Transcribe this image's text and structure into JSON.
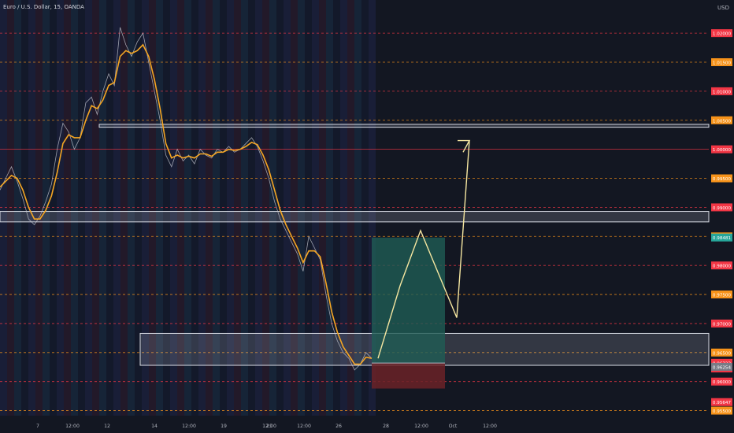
{
  "header": {
    "title": "Euro / U.S. Dollar, 15, OANDA",
    "currency": "USD"
  },
  "colors": {
    "background": "#131722",
    "grid_orange": "#f7931a",
    "grid_red": "#f23645",
    "price_line": "#c9ccd6",
    "ma_line": "#f5a623",
    "projection": "#f6e7a1",
    "target_zone": "#1f5c55",
    "stop_zone": "#6b2227",
    "zone_border": "#d7dae3"
  },
  "chart_data": {
    "type": "line",
    "symbol": "EURUSD",
    "interval": "15",
    "ylim": [
      0.9525,
      1.023
    ],
    "price_levels": [
      {
        "value": "1.02500",
        "style": "orange"
      },
      {
        "value": "1.02000",
        "style": "red"
      },
      {
        "value": "1.01500",
        "style": "orange"
      },
      {
        "value": "1.01000",
        "style": "red"
      },
      {
        "value": "1.00500",
        "style": "orange"
      },
      {
        "value": "1.00000",
        "style": "red"
      },
      {
        "value": "0.99500",
        "style": "orange"
      },
      {
        "value": "0.99000",
        "style": "red"
      },
      {
        "value": "0.98500",
        "style": "orange"
      },
      {
        "value": "0.98000",
        "style": "red"
      },
      {
        "value": "0.97500",
        "style": "orange"
      },
      {
        "value": "0.97000",
        "style": "red"
      },
      {
        "value": "0.96500",
        "style": "orange"
      },
      {
        "value": "0.96000",
        "style": "red"
      },
      {
        "value": "0.95500",
        "style": "orange"
      },
      {
        "value": "0.95000",
        "style": "red"
      }
    ],
    "price_tags": [
      {
        "value": "0.98481",
        "color": "#26a69a"
      },
      {
        "value": "0.96323",
        "color": "#f23645"
      },
      {
        "value": "25:31",
        "color": "#f23645"
      },
      {
        "value": "0.96254",
        "color": "#787b86"
      },
      {
        "value": "0.95647",
        "color": "#f23645"
      }
    ],
    "x_ticks": [
      "7",
      "12:00",
      "12",
      "14",
      "12:00",
      "19",
      "12:00",
      "21",
      "12:00",
      "26",
      "28",
      "12:00",
      "Oct",
      "12:00"
    ],
    "price_series": [
      0.993,
      0.995,
      0.997,
      0.9945,
      0.9915,
      0.988,
      0.987,
      0.9885,
      0.991,
      0.994,
      1.0,
      1.0045,
      1.003,
      1.0,
      1.002,
      1.008,
      1.009,
      1.006,
      1.01,
      1.013,
      1.011,
      1.021,
      1.018,
      1.016,
      1.0185,
      1.02,
      1.015,
      1.01,
      1.005,
      0.999,
      0.997,
      1.0,
      0.998,
      0.999,
      0.9975,
      1.0,
      0.999,
      0.9985,
      1.0,
      0.9995,
      1.0005,
      0.9995,
      1.0,
      1.001,
      1.002,
      1.0005,
      0.998,
      0.995,
      0.991,
      0.988,
      0.986,
      0.984,
      0.982,
      0.979,
      0.985,
      0.983,
      0.981,
      0.975,
      0.97,
      0.967,
      0.965,
      0.964,
      0.962,
      0.963,
      0.965,
      0.964
    ],
    "ma_series": [
      0.9935,
      0.9945,
      0.9955,
      0.995,
      0.993,
      0.99,
      0.988,
      0.988,
      0.9895,
      0.992,
      0.996,
      1.001,
      1.0025,
      1.002,
      1.002,
      1.005,
      1.0075,
      1.007,
      1.0085,
      1.011,
      1.0115,
      1.016,
      1.017,
      1.0165,
      1.017,
      1.018,
      1.016,
      1.012,
      1.007,
      1.001,
      0.9985,
      0.999,
      0.9985,
      0.9988,
      0.9985,
      0.9992,
      0.9992,
      0.9988,
      0.9995,
      0.9995,
      1.0,
      0.9998,
      1.0,
      1.0005,
      1.0012,
      1.0008,
      0.999,
      0.9965,
      0.993,
      0.9895,
      0.987,
      0.985,
      0.983,
      0.9805,
      0.9825,
      0.9825,
      0.9815,
      0.977,
      0.972,
      0.9685,
      0.966,
      0.9645,
      0.963,
      0.963,
      0.9642,
      0.964
    ],
    "zones": [
      {
        "kind": "resistance",
        "from": 1.0038,
        "to": 1.0043
      },
      {
        "kind": "supply",
        "from": 0.9875,
        "to": 0.9893
      },
      {
        "kind": "demand",
        "from": 0.9628,
        "to": 0.9683
      }
    ],
    "position": {
      "entry": 0.9632,
      "target": 0.9848,
      "stop": 0.9588
    },
    "projection": [
      [
        0.964,
        0.964
      ],
      [
        0.9745,
        0.9765
      ],
      [
        0.979,
        0.986
      ],
      [
        0.9935,
        0.971
      ],
      [
        0.9995,
        1.0015
      ],
      [
        1.003,
        0.9995
      ]
    ]
  }
}
